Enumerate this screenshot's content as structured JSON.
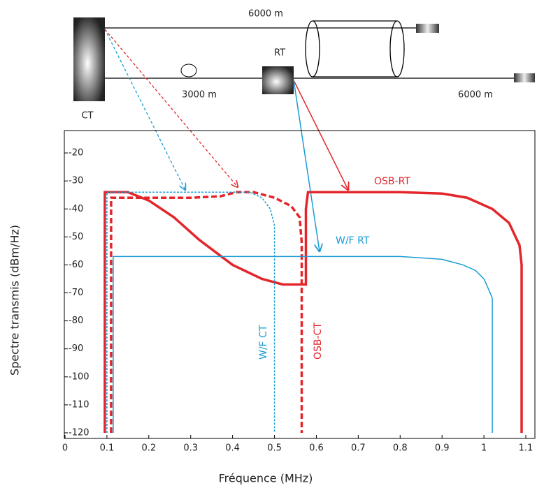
{
  "diagram": {
    "ct_label": "CT",
    "rt_label": "RT",
    "top_cable_label": "6000 m",
    "ct_rt_label": "3000 m",
    "rt_cable_label": "6000 m"
  },
  "chart_data": {
    "type": "line",
    "x_label": "Fréquence (MHz)",
    "y_label": "Spectre transmis (dBm/Hz)",
    "xlim": [
      0,
      1.1
    ],
    "ylim": [
      -122,
      -12
    ],
    "xticks": [
      0,
      0.1,
      0.2,
      0.3,
      0.4,
      0.5,
      0.6,
      0.7,
      0.8,
      0.9,
      1,
      1.1
    ],
    "yticks": [
      -20,
      -30,
      -40,
      -50,
      -60,
      -70,
      -80,
      -90,
      -100,
      -110,
      -120
    ],
    "series": [
      {
        "name": "OSB-RT",
        "color": "#e3262b",
        "dash": false,
        "x": [
          0.095,
          0.095,
          0.15,
          0.2,
          0.26,
          0.32,
          0.4,
          0.47,
          0.52,
          0.575,
          0.575,
          0.58,
          0.65,
          0.8,
          0.9,
          0.96,
          1.02,
          1.06,
          1.085,
          1.09,
          1.09
        ],
        "values": [
          -120,
          -34,
          -34,
          -37,
          -43,
          -51,
          -60,
          -65,
          -67,
          -67,
          -40,
          -34,
          -34,
          -34,
          -34.5,
          -36,
          -40,
          -45,
          -53,
          -60,
          -120
        ]
      },
      {
        "name": "OSB-CT",
        "color": "#e3262b",
        "dash": true,
        "x": [
          0.11,
          0.11,
          0.2,
          0.3,
          0.37,
          0.41,
          0.45,
          0.5,
          0.54,
          0.56,
          0.565,
          0.565
        ],
        "values": [
          -120,
          -36,
          -36,
          -36,
          -35.5,
          -34,
          -34,
          -36,
          -39,
          -43,
          -52,
          -120
        ]
      },
      {
        "name": "W/F RT",
        "color": "#1a9cd6",
        "dash": false,
        "x": [
          0.115,
          0.115,
          0.4,
          0.8,
          0.9,
          0.95,
          0.98,
          1.0,
          1.015,
          1.02,
          1.02
        ],
        "values": [
          -120,
          -57,
          -57,
          -57,
          -58,
          -60,
          -62,
          -65,
          -70,
          -72,
          -120
        ]
      },
      {
        "name": "W/F CT",
        "color": "#1a9cd6",
        "dash": true,
        "x": [
          0.1,
          0.1,
          0.3,
          0.44,
          0.47,
          0.49,
          0.5,
          0.5
        ],
        "values": [
          -120,
          -34,
          -34,
          -34,
          -36,
          -40,
          -46,
          -120
        ]
      }
    ]
  }
}
